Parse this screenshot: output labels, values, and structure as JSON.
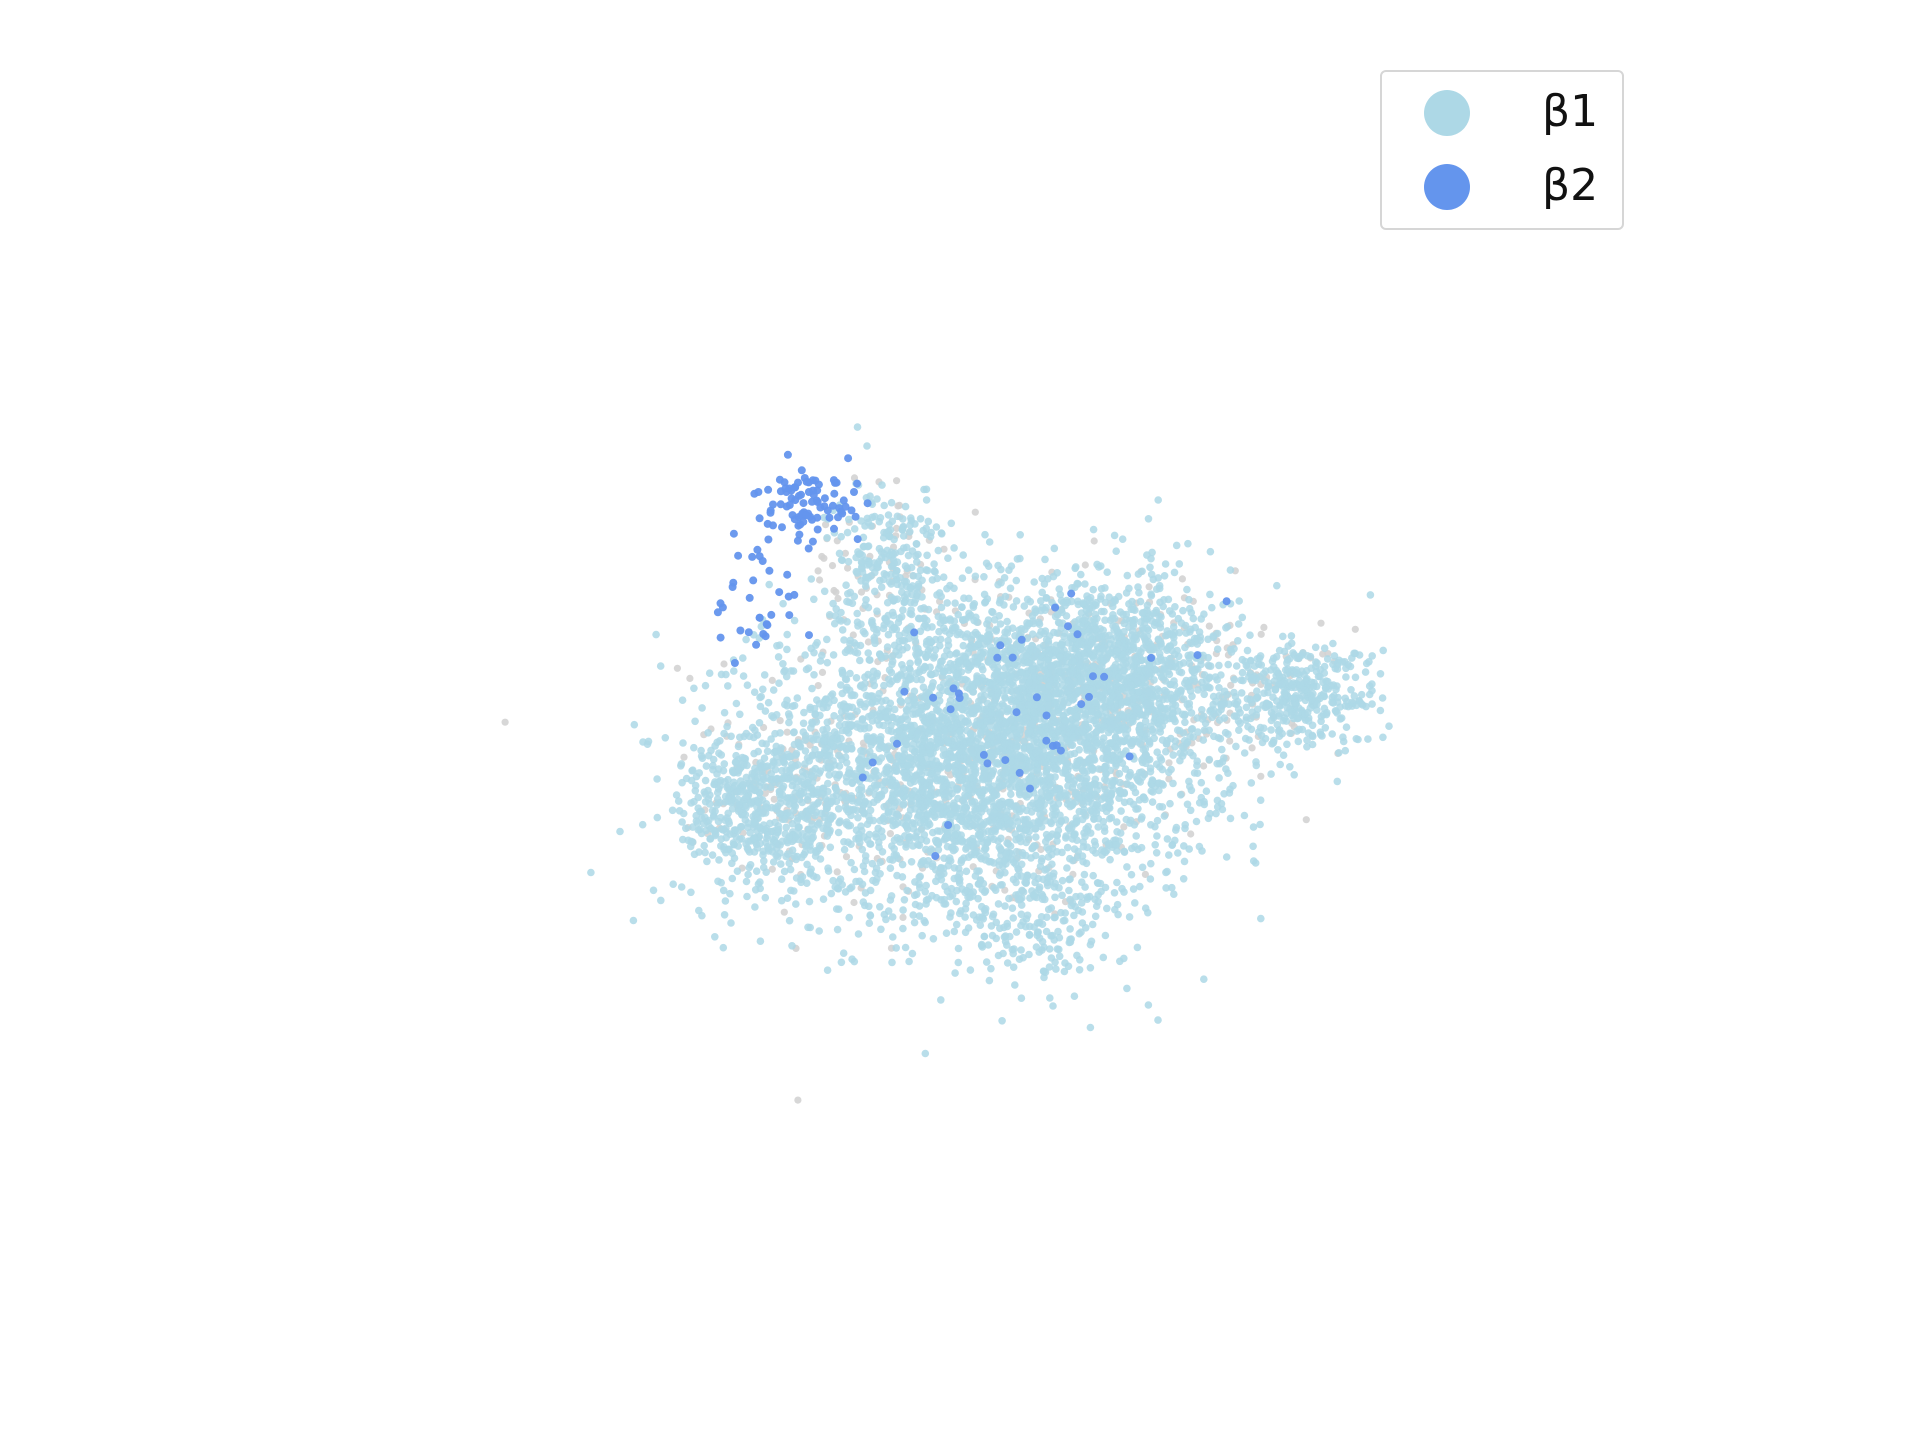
{
  "chart_data": {
    "type": "scatter",
    "title": "",
    "xlabel": "",
    "ylabel": "",
    "axes_visible": false,
    "grid": false,
    "legend_position": "top-right",
    "background_color": "#d3d3d3",
    "xlim": [
      -10,
      10
    ],
    "ylim": [
      -8,
      8
    ],
    "series": [
      {
        "name": "β1",
        "color": "#add8e6",
        "approx_point_count": 6000,
        "regions": [
          {
            "center": [
              0.0,
              -0.7
            ],
            "spread": [
              2.2,
              1.5
            ],
            "share": 0.6
          },
          {
            "center": [
              2.5,
              1.1
            ],
            "spread": [
              1.3,
              0.9
            ],
            "share": 0.2
          },
          {
            "center": [
              6.5,
              0.6
            ],
            "spread": [
              0.8,
              0.5
            ],
            "share": 0.06
          },
          {
            "center": [
              -4.5,
              -1.7
            ],
            "spread": [
              0.8,
              0.8
            ],
            "share": 0.08
          },
          {
            "center": [
              -1.8,
              3.2
            ],
            "spread": [
              0.6,
              0.8
            ],
            "share": 0.04
          },
          {
            "center": [
              1.0,
              -4.1
            ],
            "spread": [
              0.9,
              0.5
            ],
            "share": 0.02
          }
        ]
      },
      {
        "name": "β2",
        "color": "#6495ed",
        "approx_point_count": 160,
        "regions": [
          {
            "center": [
              -3.5,
              4.3
            ],
            "spread": [
              0.5,
              0.35
            ],
            "share": 0.55
          },
          {
            "center": [
              -4.5,
              2.5
            ],
            "spread": [
              0.5,
              0.9
            ],
            "share": 0.2
          },
          {
            "center": [
              0.5,
              0.5
            ],
            "spread": [
              1.6,
              1.0
            ],
            "share": 0.25
          }
        ]
      }
    ]
  },
  "legend": {
    "items": [
      {
        "label": "β1",
        "color": "#add8e6"
      },
      {
        "label": "β2",
        "color": "#6495ed"
      }
    ]
  }
}
